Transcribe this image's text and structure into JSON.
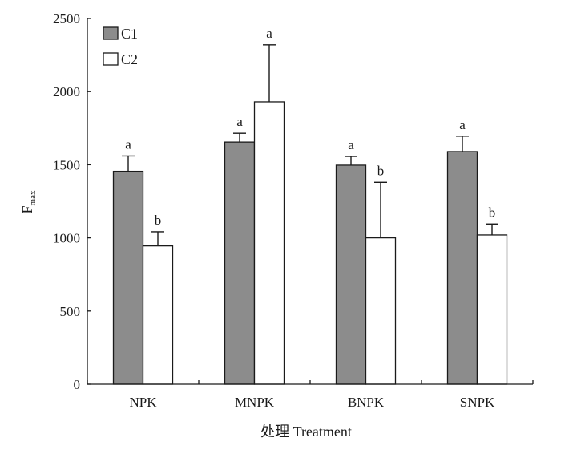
{
  "chart_data": {
    "type": "bar",
    "categories": [
      "NPK",
      "MNPK",
      "BNPK",
      "SNPK"
    ],
    "series": [
      {
        "name": "C1",
        "color": "#8c8c8c",
        "values": [
          1455,
          1655,
          1497,
          1590
        ],
        "errors": [
          105,
          60,
          60,
          105
        ],
        "sig": [
          "a",
          "a",
          "a",
          "a"
        ]
      },
      {
        "name": "C2",
        "color": "#ffffff",
        "values": [
          945,
          1930,
          1000,
          1020
        ],
        "errors": [
          97,
          390,
          380,
          75
        ],
        "sig": [
          "b",
          "a",
          "b",
          "b"
        ]
      }
    ],
    "ylim": [
      0,
      2500
    ],
    "yticks": [
      0,
      500,
      1000,
      1500,
      2000,
      2500
    ],
    "ylabel": "F",
    "ylabel_sub": "max",
    "xlabel": "处理 Treatment",
    "legend_position": "top-left",
    "grid": false
  }
}
